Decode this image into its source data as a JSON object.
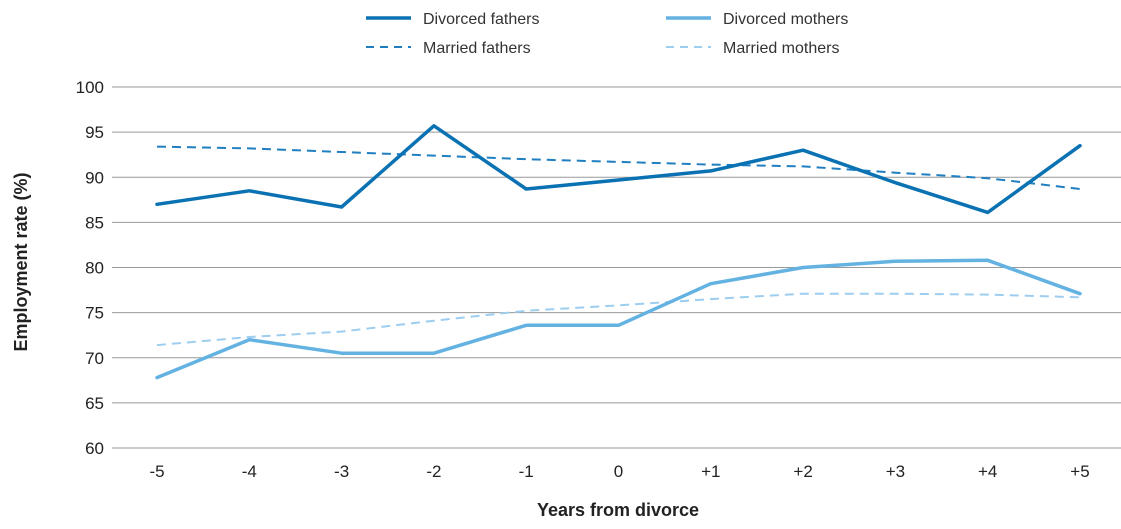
{
  "chart_data": {
    "type": "line",
    "categories": [
      "-5",
      "-4",
      "-3",
      "-2",
      "-1",
      "0",
      "+1",
      "+2",
      "+3",
      "+4",
      "+5"
    ],
    "xlabel": "Years from divorce",
    "ylabel": "Employment rate (%)",
    "ylim": [
      60,
      100
    ],
    "yticks": [
      60,
      65,
      70,
      75,
      80,
      85,
      90,
      95,
      100
    ],
    "grid": "horizontal",
    "legend_position": "top",
    "series": [
      {
        "name": "Divorced fathers",
        "style": "solid",
        "color": "#0a72b2",
        "values": [
          87.0,
          88.5,
          86.7,
          95.7,
          88.7,
          89.7,
          90.7,
          93.0,
          89.4,
          86.1,
          93.5
        ]
      },
      {
        "name": "Divorced mothers",
        "style": "solid",
        "color": "#63b2e2",
        "values": [
          67.8,
          72.0,
          70.5,
          70.5,
          73.6,
          73.6,
          78.2,
          80.0,
          80.7,
          80.8,
          77.1
        ]
      },
      {
        "name": "Married fathers",
        "style": "dashed",
        "color": "#1f7fc0",
        "values": [
          93.4,
          93.2,
          92.8,
          92.4,
          92.0,
          91.7,
          91.4,
          91.2,
          90.5,
          89.9,
          88.7
        ]
      },
      {
        "name": "Married mothers",
        "style": "dashed",
        "color": "#9dcdef",
        "values": [
          71.4,
          72.3,
          72.9,
          74.1,
          75.2,
          75.8,
          76.5,
          77.1,
          77.1,
          77.0,
          76.7
        ]
      }
    ]
  }
}
